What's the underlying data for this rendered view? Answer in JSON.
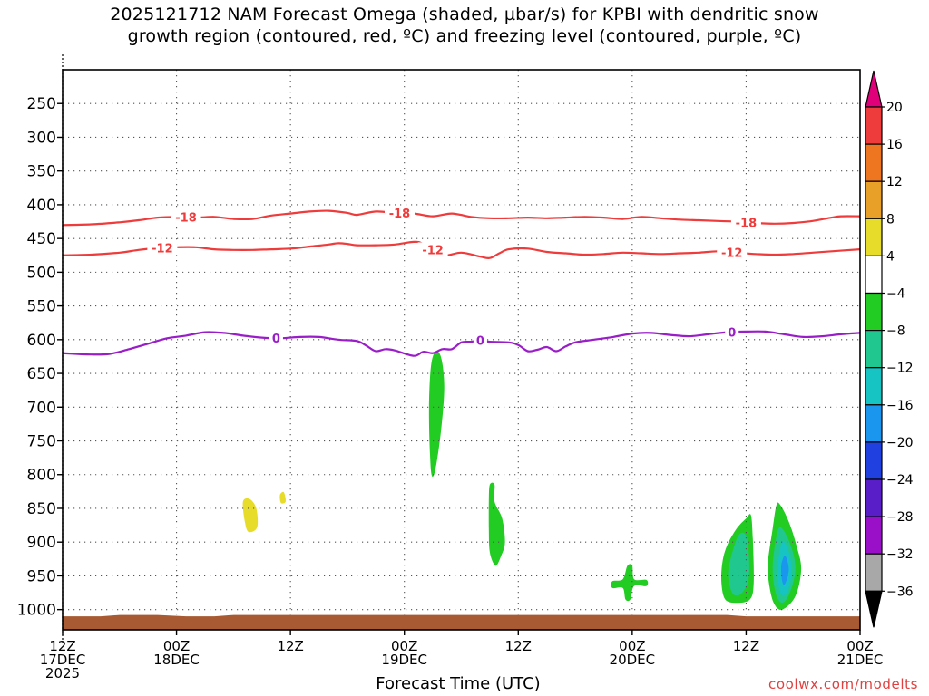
{
  "title_lines": [
    "2025121712 NAM Forecast Omega (shaded, µbar/s) for KPBI with dendritic snow",
    "growth region (contoured, red, ºC) and freezing level (contoured, purple, ºC)"
  ],
  "credit": "coolwx.com/modelts",
  "chart_data": {
    "type": "heatmap",
    "xlabel": "Forecast Time (UTC)",
    "ylabel": "",
    "x_ticks": [
      {
        "hour": 0,
        "lines": [
          "12Z",
          "17DEC",
          "2025"
        ]
      },
      {
        "hour": 12,
        "lines": [
          "00Z",
          "18DEC"
        ]
      },
      {
        "hour": 24,
        "lines": [
          "12Z"
        ]
      },
      {
        "hour": 36,
        "lines": [
          "00Z",
          "19DEC"
        ]
      },
      {
        "hour": 48,
        "lines": [
          "12Z"
        ]
      },
      {
        "hour": 60,
        "lines": [
          "00Z",
          "20DEC"
        ]
      },
      {
        "hour": 72,
        "lines": [
          "12Z"
        ]
      },
      {
        "hour": 84,
        "lines": [
          "00Z",
          "21DEC"
        ]
      }
    ],
    "y_ticks": [
      250,
      300,
      350,
      400,
      450,
      500,
      550,
      600,
      650,
      700,
      750,
      800,
      850,
      900,
      950,
      1000
    ],
    "y_range_hPa": [
      200,
      1030
    ],
    "grid": true,
    "colorbar": {
      "ticks": [
        "20",
        "16",
        "12",
        "8",
        "4",
        "−4",
        "−8",
        "−12",
        "−16",
        "−20",
        "−24",
        "−28",
        "−32",
        "−36"
      ],
      "colors": [
        "#e0007a",
        "#ee3b3b",
        "#ee7621",
        "#e8a028",
        "#e8dc2a",
        "#ffffff",
        "#22cc22",
        "#20c890",
        "#16c4c4",
        "#1a96ee",
        "#2040e0",
        "#5a1ec8",
        "#9a10c8",
        "#a8a8a8",
        "#000000"
      ]
    },
    "contours": [
      {
        "label": "-18",
        "color": "#ee3b3b",
        "label_hours": [
          13,
          35.5,
          72
        ],
        "points": [
          [
            0,
            430
          ],
          [
            3,
            429
          ],
          [
            6,
            426
          ],
          [
            8,
            423
          ],
          [
            10,
            419
          ],
          [
            12,
            418
          ],
          [
            14,
            419
          ],
          [
            16,
            418
          ],
          [
            18,
            421
          ],
          [
            20,
            421
          ],
          [
            22,
            416
          ],
          [
            24,
            413
          ],
          [
            26,
            410
          ],
          [
            28,
            409
          ],
          [
            30,
            412
          ],
          [
            31,
            415
          ],
          [
            33,
            410
          ],
          [
            35,
            412
          ],
          [
            37,
            413
          ],
          [
            39,
            417
          ],
          [
            41,
            413
          ],
          [
            43,
            418
          ],
          [
            45,
            420
          ],
          [
            47,
            420
          ],
          [
            49,
            419
          ],
          [
            51,
            420
          ],
          [
            53,
            419
          ],
          [
            55,
            418
          ],
          [
            57,
            419
          ],
          [
            59,
            421
          ],
          [
            61,
            418
          ],
          [
            63,
            420
          ],
          [
            65,
            422
          ],
          [
            67,
            423
          ],
          [
            69,
            424
          ],
          [
            71,
            425
          ],
          [
            73,
            427
          ],
          [
            75,
            428
          ],
          [
            77,
            427
          ],
          [
            79,
            424
          ],
          [
            81,
            419
          ],
          [
            82,
            417
          ],
          [
            84,
            417
          ]
        ]
      },
      {
        "label": "-12",
        "color": "#ee3b3b",
        "label_hours": [
          10.5,
          39,
          70.5
        ],
        "points": [
          [
            0,
            475
          ],
          [
            3,
            474
          ],
          [
            6,
            471
          ],
          [
            8,
            467
          ],
          [
            10,
            464
          ],
          [
            12,
            463
          ],
          [
            14,
            463
          ],
          [
            16,
            466
          ],
          [
            18,
            467
          ],
          [
            20,
            467
          ],
          [
            22,
            466
          ],
          [
            24,
            465
          ],
          [
            26,
            462
          ],
          [
            28,
            459
          ],
          [
            29,
            457
          ],
          [
            30,
            458
          ],
          [
            31,
            460
          ],
          [
            33,
            460
          ],
          [
            35,
            459
          ],
          [
            37,
            455
          ],
          [
            38,
            458
          ],
          [
            40,
            475
          ],
          [
            42,
            471
          ],
          [
            44,
            477
          ],
          [
            45,
            479
          ],
          [
            46,
            472
          ],
          [
            47,
            466
          ],
          [
            49,
            465
          ],
          [
            51,
            470
          ],
          [
            53,
            472
          ],
          [
            55,
            474
          ],
          [
            57,
            473
          ],
          [
            59,
            471
          ],
          [
            61,
            472
          ],
          [
            63,
            473
          ],
          [
            65,
            472
          ],
          [
            67,
            471
          ],
          [
            69,
            469
          ],
          [
            71,
            471
          ],
          [
            73,
            473
          ],
          [
            75,
            474
          ],
          [
            77,
            473
          ],
          [
            79,
            471
          ],
          [
            81,
            469
          ],
          [
            84,
            466
          ]
        ]
      },
      {
        "label": "0",
        "color": "#9a1ec8",
        "label_hours": [
          22.5,
          44,
          70.5
        ],
        "points": [
          [
            0,
            620
          ],
          [
            3,
            622
          ],
          [
            5,
            621
          ],
          [
            7,
            614
          ],
          [
            9,
            606
          ],
          [
            11,
            598
          ],
          [
            13,
            594
          ],
          [
            15,
            589
          ],
          [
            17,
            590
          ],
          [
            19,
            594
          ],
          [
            21,
            597
          ],
          [
            23,
            598
          ],
          [
            25,
            596
          ],
          [
            27,
            596
          ],
          [
            29,
            600
          ],
          [
            31,
            602
          ],
          [
            32,
            609
          ],
          [
            33,
            617
          ],
          [
            34,
            614
          ],
          [
            35,
            616
          ],
          [
            37,
            624
          ],
          [
            38,
            618
          ],
          [
            39,
            620
          ],
          [
            40,
            614
          ],
          [
            41,
            614
          ],
          [
            42,
            604
          ],
          [
            43,
            603
          ],
          [
            44,
            601
          ],
          [
            45,
            603
          ],
          [
            47,
            604
          ],
          [
            48,
            608
          ],
          [
            49,
            617
          ],
          [
            50,
            615
          ],
          [
            51,
            611
          ],
          [
            52,
            617
          ],
          [
            53,
            610
          ],
          [
            54,
            604
          ],
          [
            56,
            600
          ],
          [
            58,
            596
          ],
          [
            60,
            591
          ],
          [
            62,
            590
          ],
          [
            64,
            593
          ],
          [
            66,
            595
          ],
          [
            68,
            592
          ],
          [
            70,
            589
          ],
          [
            72,
            588
          ],
          [
            74,
            588
          ],
          [
            76,
            592
          ],
          [
            78,
            596
          ],
          [
            80,
            595
          ],
          [
            82,
            592
          ],
          [
            84,
            590
          ]
        ]
      }
    ],
    "shaded_regions": [
      {
        "omega_class": "4",
        "color": "#e8dc2a",
        "points": [
          [
            19.0,
            840
          ],
          [
            19.7,
            836
          ],
          [
            20.4,
            850
          ],
          [
            20.5,
            878
          ],
          [
            19.6,
            885
          ],
          [
            19.2,
            870
          ]
        ]
      },
      {
        "omega_class": "4",
        "color": "#e8dc2a",
        "points": [
          [
            22.9,
            830
          ],
          [
            23.3,
            826
          ],
          [
            23.5,
            840
          ],
          [
            23.0,
            842
          ]
        ]
      },
      {
        "omega_class": "-4",
        "color": "#22cc22",
        "points": [
          [
            39.3,
            617
          ],
          [
            39.9,
            628
          ],
          [
            40.2,
            670
          ],
          [
            39.9,
            730
          ],
          [
            39.3,
            790
          ],
          [
            38.9,
            802
          ],
          [
            38.7,
            770
          ],
          [
            38.6,
            700
          ],
          [
            38.8,
            640
          ]
        ]
      },
      {
        "omega_class": "-4",
        "color": "#22cc22",
        "points": [
          [
            45.0,
            815
          ],
          [
            45.5,
            815
          ],
          [
            45.5,
            840
          ],
          [
            46.3,
            865
          ],
          [
            46.6,
            900
          ],
          [
            46.2,
            920
          ],
          [
            45.6,
            935
          ],
          [
            45.0,
            915
          ],
          [
            44.9,
            880
          ],
          [
            44.9,
            840
          ]
        ]
      },
      {
        "omega_class": "-4",
        "color": "#22cc22",
        "points": [
          [
            57.9,
            958
          ],
          [
            59.0,
            955
          ],
          [
            59.5,
            935
          ],
          [
            60.0,
            935
          ],
          [
            60.2,
            955
          ],
          [
            61.5,
            956
          ],
          [
            61.5,
            965
          ],
          [
            60.2,
            965
          ],
          [
            59.8,
            985
          ],
          [
            59.3,
            985
          ],
          [
            59.0,
            968
          ],
          [
            57.9,
            968
          ]
        ]
      },
      {
        "omega_class": "-4",
        "color": "#22cc22",
        "points": [
          [
            69.5,
            930
          ],
          [
            70.0,
            905
          ],
          [
            71.0,
            880
          ],
          [
            72.0,
            865
          ],
          [
            72.5,
            860
          ],
          [
            72.7,
            895
          ],
          [
            72.8,
            960
          ],
          [
            72.4,
            985
          ],
          [
            71.0,
            990
          ],
          [
            69.8,
            985
          ],
          [
            69.4,
            960
          ]
        ]
      },
      {
        "omega_class": "-8",
        "color": "#20c890",
        "points": [
          [
            70.2,
            935
          ],
          [
            71.2,
            890
          ],
          [
            72.1,
            895
          ],
          [
            72.3,
            950
          ],
          [
            71.6,
            975
          ],
          [
            70.7,
            978
          ],
          [
            70.2,
            960
          ]
        ]
      },
      {
        "omega_class": "-4",
        "color": "#22cc22",
        "points": [
          [
            74.3,
            930
          ],
          [
            74.8,
            880
          ],
          [
            75.2,
            845
          ],
          [
            75.6,
            845
          ],
          [
            76.5,
            870
          ],
          [
            77.3,
            905
          ],
          [
            77.8,
            940
          ],
          [
            77.2,
            980
          ],
          [
            75.8,
            1000
          ],
          [
            74.9,
            990
          ],
          [
            74.4,
            960
          ]
        ]
      },
      {
        "omega_class": "-8",
        "color": "#20c890",
        "points": [
          [
            74.8,
            935
          ],
          [
            75.3,
            885
          ],
          [
            75.8,
            880
          ],
          [
            76.7,
            905
          ],
          [
            77.2,
            940
          ],
          [
            76.6,
            975
          ],
          [
            75.8,
            990
          ],
          [
            75.1,
            975
          ]
        ]
      },
      {
        "omega_class": "-12",
        "color": "#16c4c4",
        "points": [
          [
            75.3,
            940
          ],
          [
            75.8,
            900
          ],
          [
            76.5,
            915
          ],
          [
            76.8,
            945
          ],
          [
            76.3,
            975
          ],
          [
            75.6,
            975
          ]
        ]
      },
      {
        "omega_class": "-16",
        "color": "#1a96ee",
        "points": [
          [
            75.7,
            935
          ],
          [
            76.1,
            920
          ],
          [
            76.5,
            940
          ],
          [
            76.1,
            962
          ],
          [
            75.8,
            958
          ]
        ]
      }
    ],
    "surface": {
      "color": "#a85a32",
      "points": [
        [
          0,
          1010
        ],
        [
          4,
          1010
        ],
        [
          6,
          1008
        ],
        [
          10,
          1008
        ],
        [
          13,
          1010
        ],
        [
          16,
          1010
        ],
        [
          18,
          1008
        ],
        [
          50,
          1008
        ],
        [
          70,
          1008
        ],
        [
          72,
          1010
        ],
        [
          84,
          1010
        ]
      ]
    }
  }
}
